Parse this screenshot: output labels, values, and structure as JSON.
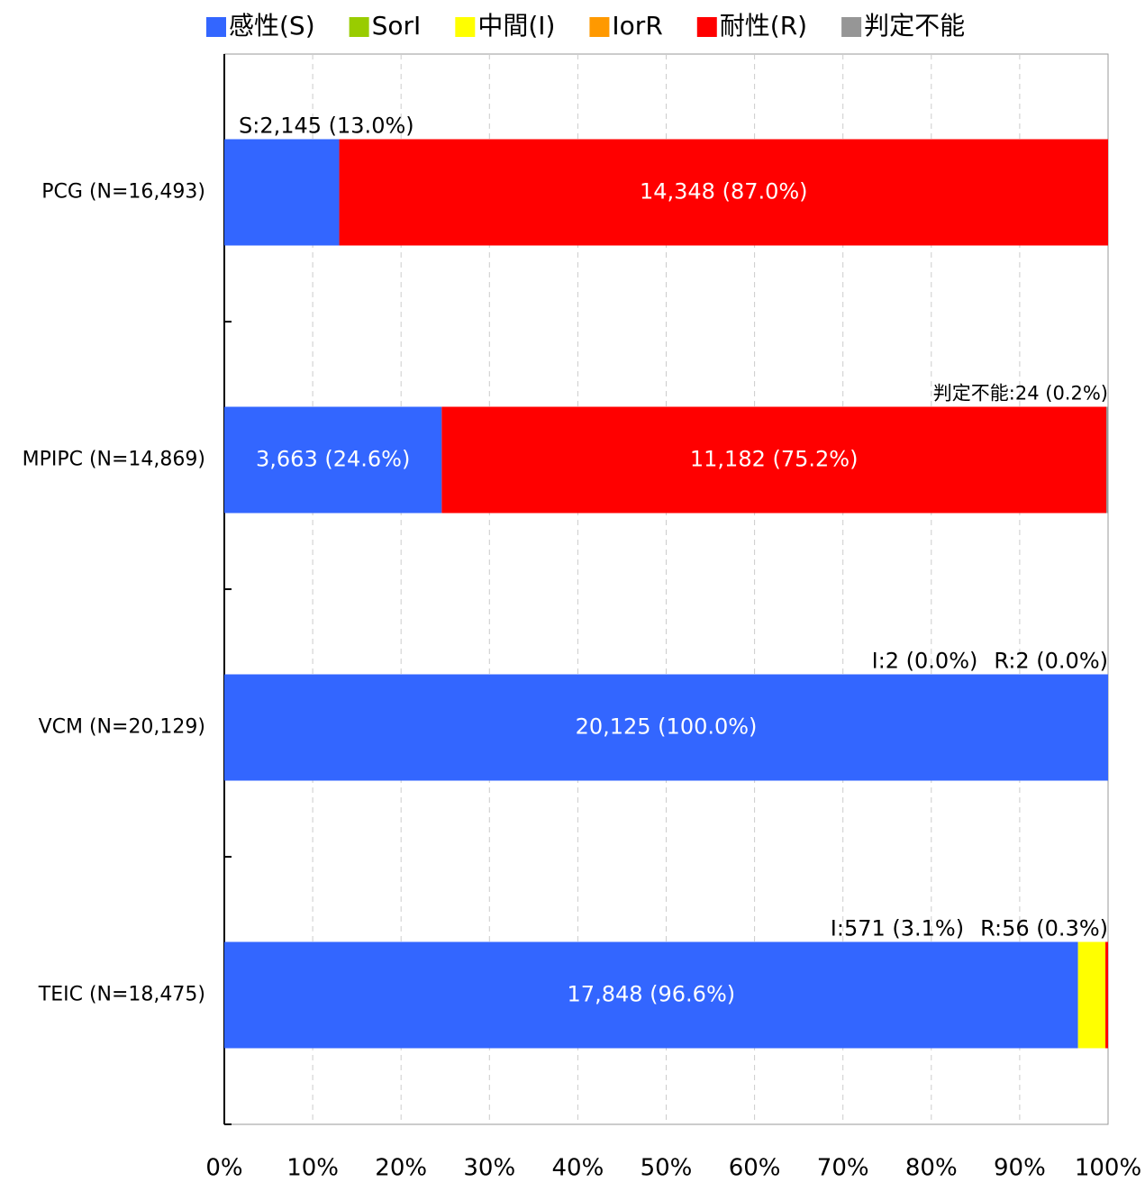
{
  "chart_data": {
    "type": "stacked-barh",
    "categories": [
      "PCG (N=16,493)",
      "MPIPC (N=14,869)",
      "VCM (N=20,129)",
      "TEIC (N=18,475)"
    ],
    "series": [
      {
        "name": "感性(S)",
        "color": "#3366ff",
        "values": [
          13.0,
          24.6,
          100.0,
          96.6
        ],
        "value_labels": [
          "S:2,145 (13.0%)",
          "3,663 (24.6%)",
          "20,125 (100.0%)",
          "17,848 (96.6%)"
        ]
      },
      {
        "name": "SorI",
        "color": "#99cc00",
        "values": [
          0,
          0,
          0,
          0
        ],
        "value_labels": [
          null,
          null,
          null,
          null
        ]
      },
      {
        "name": "中間(I)",
        "color": "#ffff00",
        "values": [
          0,
          0,
          0.0,
          3.1
        ],
        "value_labels": [
          null,
          null,
          "I:2 (0.0%)",
          "I:571 (3.1%)"
        ]
      },
      {
        "name": "IorR",
        "color": "#ff9900",
        "values": [
          0,
          0,
          0,
          0
        ],
        "value_labels": [
          null,
          null,
          null,
          null
        ]
      },
      {
        "name": "耐性(R)",
        "color": "#ff0000",
        "values": [
          87.0,
          75.2,
          0.0,
          0.3
        ],
        "value_labels": [
          "14,348 (87.0%)",
          "11,182 (75.2%)",
          "R:2 (0.0%)",
          "R:56 (0.3%)"
        ]
      },
      {
        "name": "判定不能",
        "color": "#969696",
        "values": [
          0,
          0.2,
          0,
          0
        ],
        "value_labels": [
          null,
          "判定不能:24 (0.2%)",
          null,
          null
        ]
      }
    ],
    "xlim": [
      0,
      100
    ],
    "xticks": [
      {
        "value": 0,
        "label": "0%"
      },
      {
        "value": 10,
        "label": "10%"
      },
      {
        "value": 20,
        "label": "20%"
      },
      {
        "value": 30,
        "label": "30%"
      },
      {
        "value": 40,
        "label": "40%"
      },
      {
        "value": 50,
        "label": "50%"
      },
      {
        "value": 60,
        "label": "60%"
      },
      {
        "value": 70,
        "label": "70%"
      },
      {
        "value": 80,
        "label": "80%"
      },
      {
        "value": 90,
        "label": "90%"
      },
      {
        "value": 100,
        "label": "100%"
      }
    ],
    "grid": true,
    "legend": "top"
  }
}
